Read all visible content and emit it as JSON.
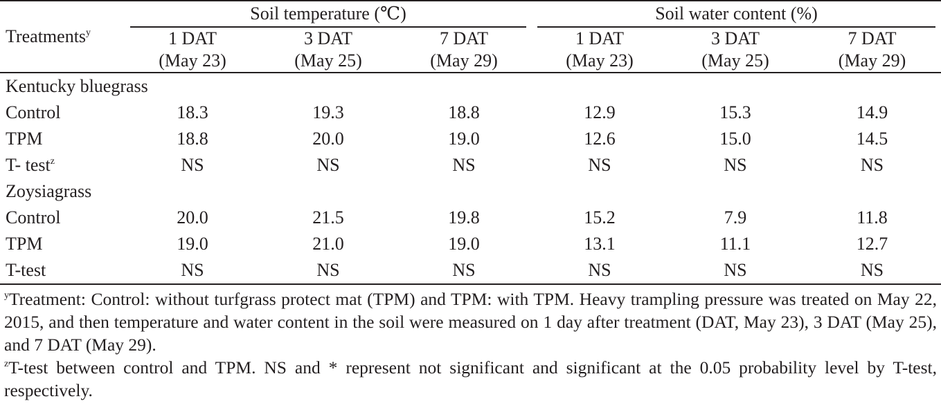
{
  "header": {
    "treatments_label": "Treatments",
    "treatments_sup": "y",
    "groups": [
      "Soil temperature (℃)",
      "Soil water content (%)"
    ],
    "timepoints": [
      {
        "day": "1 DAT",
        "date": "(May 23)"
      },
      {
        "day": "3 DAT",
        "date": "(May 25)"
      },
      {
        "day": "7 DAT",
        "date": "(May 29)"
      },
      {
        "day": "1 DAT",
        "date": "(May 23)"
      },
      {
        "day": "3 DAT",
        "date": "(May 25)"
      },
      {
        "day": "7 DAT",
        "date": "(May 29)"
      }
    ]
  },
  "sections": [
    {
      "name": "Kentucky bluegrass",
      "rows": [
        {
          "label": "Control",
          "sup": "",
          "values": [
            "18.3",
            "19.3",
            "18.8",
            "12.9",
            "15.3",
            "14.9"
          ]
        },
        {
          "label": "TPM",
          "sup": "",
          "values": [
            "18.8",
            "20.0",
            "19.0",
            "12.6",
            "15.0",
            "14.5"
          ]
        },
        {
          "label": "T- test",
          "sup": "z",
          "values": [
            "NS",
            "NS",
            "NS",
            "NS",
            "NS",
            "NS"
          ]
        }
      ]
    },
    {
      "name": "Zoysiagrass",
      "rows": [
        {
          "label": "Control",
          "sup": "",
          "values": [
            "20.0",
            "21.5",
            "19.8",
            "15.2",
            "7.9",
            "11.8"
          ]
        },
        {
          "label": "TPM",
          "sup": "",
          "values": [
            "19.0",
            "21.0",
            "19.0",
            "13.1",
            "11.1",
            "12.7"
          ]
        },
        {
          "label": "T-test",
          "sup": "",
          "values": [
            "NS",
            "NS",
            "NS",
            "NS",
            "NS",
            "NS"
          ]
        }
      ]
    }
  ],
  "footnotes": [
    {
      "mark": "y",
      "text": "Treatment: Control: without turfgrass protect mat (TPM) and TPM: with TPM. Heavy trampling pressure was treated on May 22, 2015, and then temperature and water content in the soil were measured on 1 day after treatment (DAT, May 23), 3 DAT (May 25), and 7 DAT (May 29)."
    },
    {
      "mark": "z",
      "text": "T-test between control and TPM. NS and * represent not significant and significant at the 0.05 probability level by T-test, respectively."
    }
  ]
}
